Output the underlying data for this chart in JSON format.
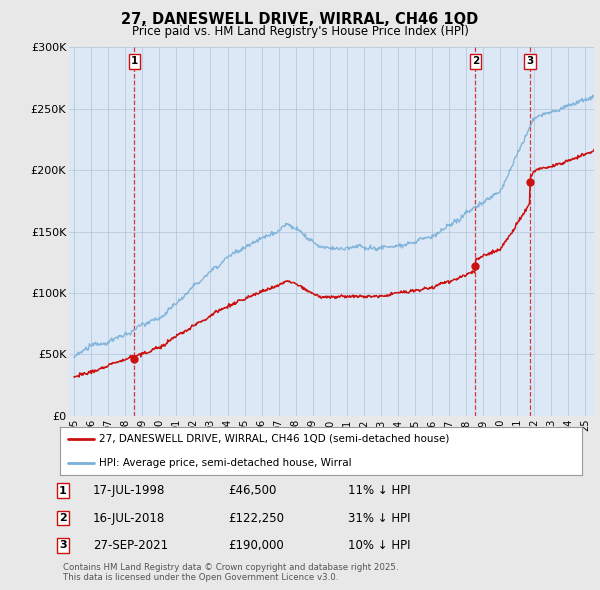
{
  "title_line1": "27, DANESWELL DRIVE, WIRRAL, CH46 1QD",
  "title_line2": "Price paid vs. HM Land Registry's House Price Index (HPI)",
  "background_color": "#e8e8e8",
  "plot_bg_color": "#dce8f5",
  "hpi_color": "#7ab0d8",
  "price_color": "#cc1111",
  "sale_marker_color": "#cc1111",
  "vline_color": "#cc1111",
  "ylim": [
    0,
    300000
  ],
  "yticks": [
    0,
    50000,
    100000,
    150000,
    200000,
    250000,
    300000
  ],
  "ytick_labels": [
    "£0",
    "£50K",
    "£100K",
    "£150K",
    "£200K",
    "£250K",
    "£300K"
  ],
  "xmin": 1995,
  "xmax": 2025.5,
  "sales": [
    {
      "date_num": 1998.54,
      "price": 46500,
      "label": "1",
      "date_str": "17-JUL-1998",
      "pct": "11% ↓ HPI"
    },
    {
      "date_num": 2018.54,
      "price": 122250,
      "label": "2",
      "date_str": "16-JUL-2018",
      "pct": "31% ↓ HPI"
    },
    {
      "date_num": 2021.74,
      "price": 190000,
      "label": "3",
      "date_str": "27-SEP-2021",
      "pct": "10% ↓ HPI"
    }
  ],
  "legend_entry1": "27, DANESWELL DRIVE, WIRRAL, CH46 1QD (semi-detached house)",
  "legend_entry2": "HPI: Average price, semi-detached house, Wirral",
  "footnote": "Contains HM Land Registry data © Crown copyright and database right 2025.\nThis data is licensed under the Open Government Licence v3.0.",
  "table_rows": [
    [
      "1",
      "17-JUL-1998",
      "£46,500",
      "11% ↓ HPI"
    ],
    [
      "2",
      "16-JUL-2018",
      "£122,250",
      "31% ↓ HPI"
    ],
    [
      "3",
      "27-SEP-2021",
      "£190,000",
      "10% ↓ HPI"
    ]
  ]
}
